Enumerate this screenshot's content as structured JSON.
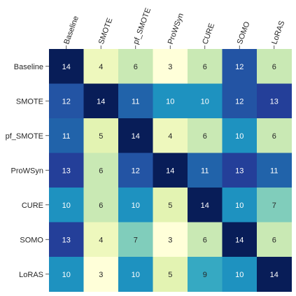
{
  "chart_data": {
    "type": "heatmap",
    "title": "",
    "xlabel": "",
    "ylabel": "",
    "x_categories": [
      "Baseline",
      "SMOTE",
      "pf_SMOTE",
      "ProWSyn",
      "CURE",
      "SOMO",
      "LoRAS"
    ],
    "y_categories": [
      "Baseline",
      "SMOTE",
      "pf_SMOTE",
      "ProWSyn",
      "CURE",
      "SOMO",
      "LoRAS"
    ],
    "values": [
      [
        14,
        4,
        6,
        3,
        6,
        12,
        6
      ],
      [
        12,
        14,
        11,
        10,
        10,
        12,
        13
      ],
      [
        11,
        5,
        14,
        4,
        6,
        10,
        6
      ],
      [
        13,
        6,
        12,
        14,
        11,
        13,
        11
      ],
      [
        10,
        6,
        10,
        5,
        14,
        10,
        7
      ],
      [
        13,
        4,
        7,
        3,
        6,
        14,
        6
      ],
      [
        10,
        3,
        10,
        5,
        9,
        10,
        14
      ]
    ],
    "colormap": "YlGnBu",
    "colors": {
      "3": "#ffffd9",
      "4": "#eef8bd",
      "5": "#e3f3b2",
      "6": "#c9e9b4",
      "7": "#80cdbb",
      "9": "#36a9c2",
      "10": "#1e92c0",
      "11": "#2163aa",
      "12": "#2354a4",
      "13": "#243f99",
      "14": "#081d58"
    },
    "grid": false,
    "legend": "none"
  }
}
